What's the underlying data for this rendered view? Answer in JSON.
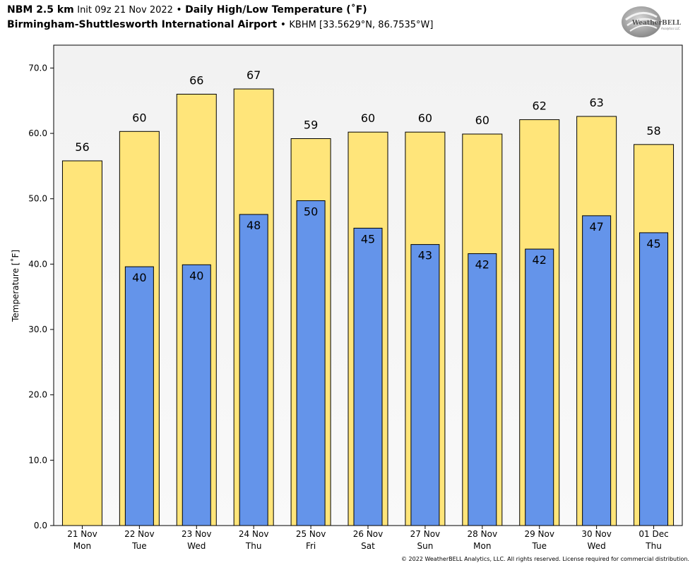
{
  "header": {
    "model": "NBM 2.5 km",
    "init": "Init 09z 21 Nov 2022",
    "sep": "•",
    "title": "Daily High/Low Temperature (˚F)",
    "station_name": "Birmingham-Shuttlesworth International Airport",
    "station_info": "KBHM [33.5629°N, 86.7535°W]"
  },
  "logo": {
    "text_main": "WeatherBELL",
    "text_sub": "Analytics LLC"
  },
  "copyright": "© 2022 WeatherBELL Analytics, LLC. All rights reserved. License required for commercial distribution.",
  "colors": {
    "high": "#FFE57A",
    "low": "#6494EA",
    "plot_bg_top": "#f3f3f3",
    "plot_bg_bottom": "#f8f8f8"
  },
  "chart_data": {
    "type": "bar",
    "ylabel": "Temperature [˚F]",
    "ylim": [
      0,
      73.5
    ],
    "yticks": [
      "0.0",
      "10.0",
      "20.0",
      "30.0",
      "40.0",
      "50.0",
      "60.0",
      "70.0"
    ],
    "grid": false,
    "categories": [
      {
        "date": "21 Nov",
        "day": "Mon"
      },
      {
        "date": "22 Nov",
        "day": "Tue"
      },
      {
        "date": "23 Nov",
        "day": "Wed"
      },
      {
        "date": "24 Nov",
        "day": "Thu"
      },
      {
        "date": "25 Nov",
        "day": "Fri"
      },
      {
        "date": "26 Nov",
        "day": "Sat"
      },
      {
        "date": "27 Nov",
        "day": "Sun"
      },
      {
        "date": "28 Nov",
        "day": "Mon"
      },
      {
        "date": "29 Nov",
        "day": "Tue"
      },
      {
        "date": "30 Nov",
        "day": "Wed"
      },
      {
        "date": "01 Dec",
        "day": "Thu"
      }
    ],
    "series": [
      {
        "key": "high",
        "values": [
          55.8,
          60.3,
          66.0,
          66.8,
          59.2,
          60.2,
          60.2,
          59.9,
          62.1,
          62.6,
          58.3
        ],
        "labels": [
          "56",
          "60",
          "66",
          "67",
          "59",
          "60",
          "60",
          "60",
          "62",
          "63",
          "58"
        ]
      },
      {
        "key": "low",
        "values": [
          null,
          39.6,
          39.9,
          47.6,
          49.7,
          45.5,
          43.0,
          41.6,
          42.3,
          47.4,
          44.8
        ],
        "labels": [
          null,
          "40",
          "40",
          "48",
          "50",
          "45",
          "43",
          "42",
          "42",
          "47",
          "45"
        ]
      }
    ]
  }
}
